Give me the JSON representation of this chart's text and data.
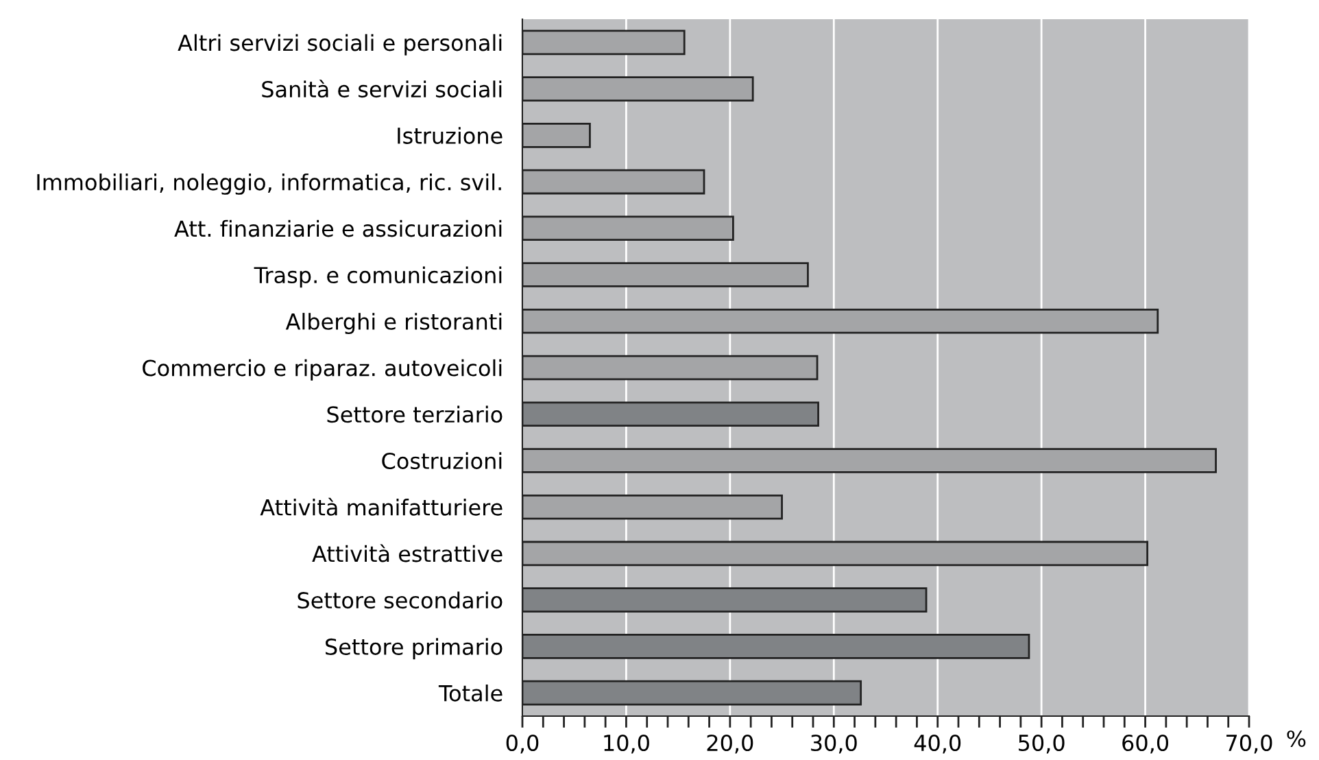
{
  "chart_data": {
    "type": "bar",
    "orientation": "horizontal",
    "categories": [
      "Altri servizi sociali e personali",
      "Sanità e servizi sociali",
      "Istruzione",
      "Immobiliari, noleggio, informatica, ric. svil.",
      "Att. finanziarie e assicurazioni",
      "Trasp. e comunicazioni",
      "Alberghi e ristoranti",
      "Commercio e riparaz. autoveicoli",
      "Settore terziario",
      "Costruzioni",
      "Attività manifatturiere",
      "Attività estrattive",
      "Settore secondario",
      "Settore primario",
      "Totale"
    ],
    "values": [
      15.6,
      22.2,
      6.5,
      17.5,
      20.3,
      27.5,
      61.2,
      28.4,
      28.5,
      66.8,
      25.0,
      60.2,
      38.9,
      48.8,
      32.6
    ],
    "colors": [
      "#a4a5a7",
      "#a4a5a7",
      "#a4a5a7",
      "#a4a5a7",
      "#a4a5a7",
      "#a4a5a7",
      "#a4a5a7",
      "#a4a5a7",
      "#808386",
      "#a4a5a7",
      "#a4a5a7",
      "#a4a5a7",
      "#808386",
      "#808386",
      "#808386"
    ],
    "xlabel": "%",
    "xlim": [
      0,
      70
    ],
    "xticks": [
      {
        "value": 0,
        "label": "0,0"
      },
      {
        "value": 2,
        "label": null
      },
      {
        "value": 4,
        "label": null
      },
      {
        "value": 6,
        "label": null
      },
      {
        "value": 8,
        "label": null
      },
      {
        "value": 10,
        "label": "10,0"
      },
      {
        "value": 12,
        "label": null
      },
      {
        "value": 14,
        "label": null
      },
      {
        "value": 16,
        "label": null
      },
      {
        "value": 18,
        "label": null
      },
      {
        "value": 20,
        "label": "20,0"
      },
      {
        "value": 22,
        "label": null
      },
      {
        "value": 24,
        "label": null
      },
      {
        "value": 26,
        "label": null
      },
      {
        "value": 28,
        "label": null
      },
      {
        "value": 30,
        "label": "30,0"
      },
      {
        "value": 32,
        "label": null
      },
      {
        "value": 34,
        "label": null
      },
      {
        "value": 36,
        "label": null
      },
      {
        "value": 38,
        "label": null
      },
      {
        "value": 40,
        "label": "40,0"
      },
      {
        "value": 42,
        "label": null
      },
      {
        "value": 44,
        "label": null
      },
      {
        "value": 46,
        "label": null
      },
      {
        "value": 48,
        "label": null
      },
      {
        "value": 50,
        "label": "50,0"
      },
      {
        "value": 52,
        "label": null
      },
      {
        "value": 54,
        "label": null
      },
      {
        "value": 56,
        "label": null
      },
      {
        "value": 58,
        "label": null
      },
      {
        "value": 60,
        "label": "60,0"
      },
      {
        "value": 62,
        "label": null
      },
      {
        "value": 64,
        "label": null
      },
      {
        "value": 66,
        "label": null
      },
      {
        "value": 68,
        "label": null
      },
      {
        "value": 70,
        "label": "70,0"
      }
    ],
    "grid": "x"
  }
}
